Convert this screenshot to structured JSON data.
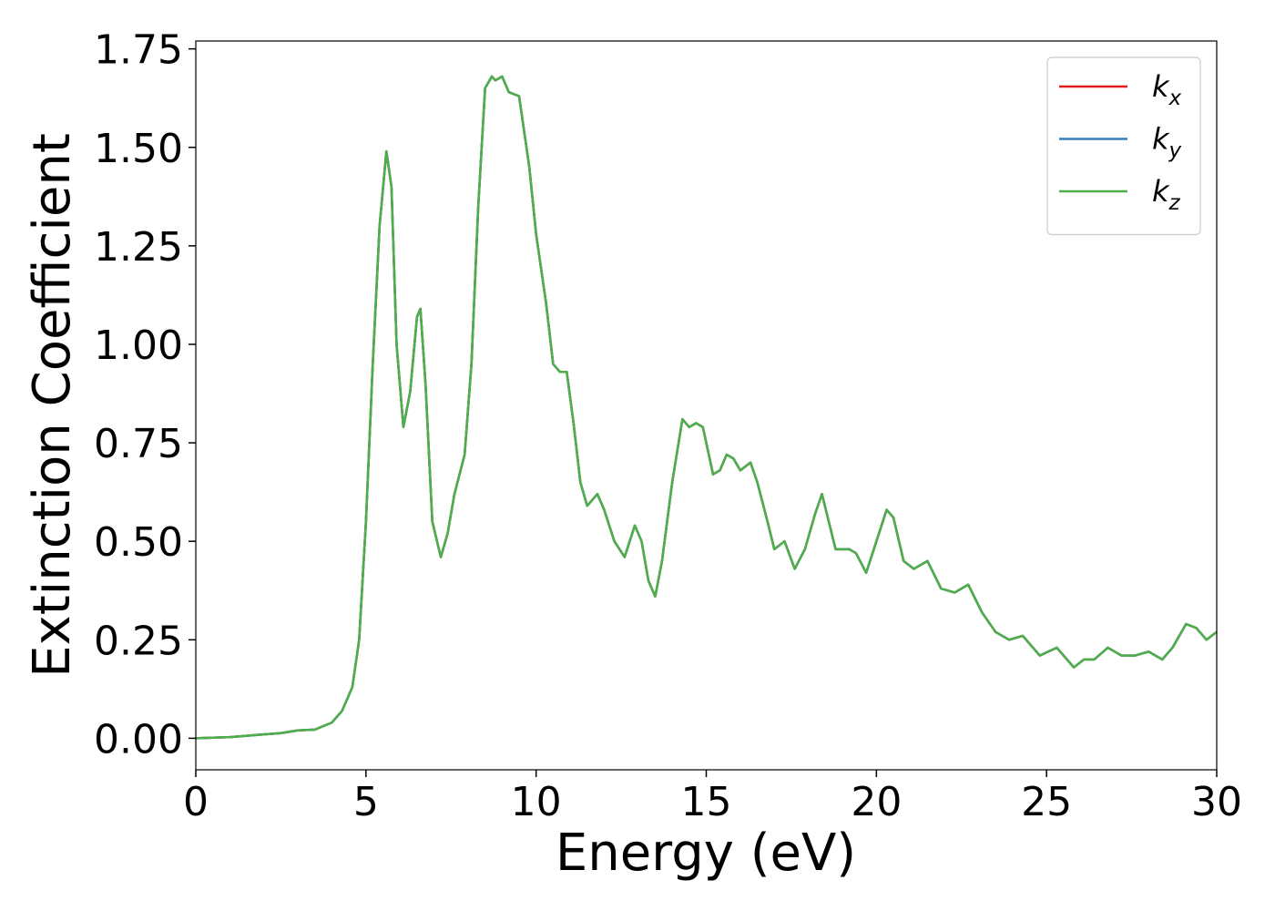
{
  "chart_data": {
    "type": "line",
    "xlabel": "Energy (eV)",
    "ylabel": "Extinction Coefficient",
    "xlim": [
      0,
      30
    ],
    "ylim": [
      -0.08,
      1.77
    ],
    "xticks": [
      0,
      5,
      10,
      15,
      20,
      25,
      30
    ],
    "yticks": [
      {
        "value": 0,
        "label": "0.00"
      },
      {
        "value": 0.25,
        "label": "0.25"
      },
      {
        "value": 0.5,
        "label": "0.50"
      },
      {
        "value": 0.75,
        "label": "0.75"
      },
      {
        "value": 1,
        "label": "1.00"
      },
      {
        "value": 1.25,
        "label": "1.25"
      },
      {
        "value": 1.5,
        "label": "1.50"
      },
      {
        "value": 1.75,
        "label": "1.75"
      }
    ],
    "grid": false,
    "legend": "upper right",
    "x": [
      0,
      1,
      2,
      2.5,
      3,
      3.5,
      4,
      4.3,
      4.6,
      4.8,
      5.0,
      5.2,
      5.4,
      5.6,
      5.75,
      5.9,
      6.1,
      6.3,
      6.5,
      6.6,
      6.75,
      6.95,
      7.2,
      7.4,
      7.6,
      7.9,
      8.1,
      8.3,
      8.5,
      8.7,
      8.8,
      9.0,
      9.2,
      9.5,
      9.8,
      10.0,
      10.3,
      10.5,
      10.7,
      10.9,
      11.1,
      11.3,
      11.5,
      11.8,
      12.0,
      12.3,
      12.6,
      12.9,
      13.1,
      13.3,
      13.5,
      13.7,
      14.0,
      14.3,
      14.5,
      14.7,
      14.9,
      15.2,
      15.4,
      15.6,
      15.8,
      16.0,
      16.3,
      16.5,
      16.8,
      17.0,
      17.3,
      17.6,
      17.9,
      18.2,
      18.4,
      18.6,
      18.8,
      19.2,
      19.4,
      19.7,
      20.0,
      20.3,
      20.5,
      20.8,
      21.1,
      21.5,
      21.9,
      22.3,
      22.7,
      23.1,
      23.5,
      23.9,
      24.3,
      24.8,
      25.3,
      25.5,
      25.8,
      26.1,
      26.4,
      26.8,
      27.2,
      27.6,
      28.0,
      28.4,
      28.7,
      29.1,
      29.4,
      29.7,
      30
    ],
    "series": [
      {
        "name": "kx",
        "color": "#e41a1c",
        "values": [
          0,
          0.003,
          0.01,
          0.013,
          0.02,
          0.022,
          0.04,
          0.07,
          0.13,
          0.25,
          0.55,
          0.95,
          1.3,
          1.49,
          1.4,
          1.0,
          0.79,
          0.88,
          1.07,
          1.09,
          0.9,
          0.55,
          0.46,
          0.52,
          0.62,
          0.72,
          0.95,
          1.35,
          1.65,
          1.68,
          1.67,
          1.68,
          1.64,
          1.63,
          1.45,
          1.28,
          1.1,
          0.95,
          0.93,
          0.93,
          0.8,
          0.65,
          0.59,
          0.62,
          0.58,
          0.5,
          0.46,
          0.54,
          0.5,
          0.4,
          0.36,
          0.45,
          0.65,
          0.81,
          0.79,
          0.8,
          0.79,
          0.67,
          0.68,
          0.72,
          0.71,
          0.68,
          0.7,
          0.65,
          0.55,
          0.48,
          0.5,
          0.43,
          0.48,
          0.57,
          0.62,
          0.55,
          0.48,
          0.48,
          0.47,
          0.42,
          0.5,
          0.58,
          0.56,
          0.45,
          0.43,
          0.45,
          0.38,
          0.37,
          0.39,
          0.32,
          0.27,
          0.25,
          0.26,
          0.21,
          0.23,
          0.21,
          0.18,
          0.2,
          0.2,
          0.23,
          0.21,
          0.21,
          0.22,
          0.2,
          0.23,
          0.29,
          0.28,
          0.25,
          0.27
        ]
      },
      {
        "name": "ky",
        "color": "#377eb8",
        "values": [
          0,
          0.003,
          0.01,
          0.013,
          0.02,
          0.022,
          0.04,
          0.07,
          0.13,
          0.25,
          0.55,
          0.95,
          1.3,
          1.49,
          1.4,
          1.0,
          0.79,
          0.88,
          1.07,
          1.09,
          0.9,
          0.55,
          0.46,
          0.52,
          0.62,
          0.72,
          0.95,
          1.35,
          1.65,
          1.68,
          1.67,
          1.68,
          1.64,
          1.63,
          1.45,
          1.28,
          1.1,
          0.95,
          0.93,
          0.93,
          0.8,
          0.65,
          0.59,
          0.62,
          0.58,
          0.5,
          0.46,
          0.54,
          0.5,
          0.4,
          0.36,
          0.45,
          0.65,
          0.81,
          0.79,
          0.8,
          0.79,
          0.67,
          0.68,
          0.72,
          0.71,
          0.68,
          0.7,
          0.65,
          0.55,
          0.48,
          0.5,
          0.43,
          0.48,
          0.57,
          0.62,
          0.55,
          0.48,
          0.48,
          0.47,
          0.42,
          0.5,
          0.58,
          0.56,
          0.45,
          0.43,
          0.45,
          0.38,
          0.37,
          0.39,
          0.32,
          0.27,
          0.25,
          0.26,
          0.21,
          0.23,
          0.21,
          0.18,
          0.2,
          0.2,
          0.23,
          0.21,
          0.21,
          0.22,
          0.2,
          0.23,
          0.29,
          0.28,
          0.25,
          0.27
        ]
      },
      {
        "name": "kz",
        "color": "#4daf4a",
        "values": [
          0,
          0.003,
          0.01,
          0.013,
          0.02,
          0.022,
          0.04,
          0.07,
          0.13,
          0.25,
          0.55,
          0.95,
          1.3,
          1.49,
          1.4,
          1.0,
          0.79,
          0.88,
          1.07,
          1.09,
          0.9,
          0.55,
          0.46,
          0.52,
          0.62,
          0.72,
          0.95,
          1.35,
          1.65,
          1.68,
          1.67,
          1.68,
          1.64,
          1.63,
          1.45,
          1.28,
          1.1,
          0.95,
          0.93,
          0.93,
          0.8,
          0.65,
          0.59,
          0.62,
          0.58,
          0.5,
          0.46,
          0.54,
          0.5,
          0.4,
          0.36,
          0.45,
          0.65,
          0.81,
          0.79,
          0.8,
          0.79,
          0.67,
          0.68,
          0.72,
          0.71,
          0.68,
          0.7,
          0.65,
          0.55,
          0.48,
          0.5,
          0.43,
          0.48,
          0.57,
          0.62,
          0.55,
          0.48,
          0.48,
          0.47,
          0.42,
          0.5,
          0.58,
          0.56,
          0.45,
          0.43,
          0.45,
          0.38,
          0.37,
          0.39,
          0.32,
          0.27,
          0.25,
          0.26,
          0.21,
          0.23,
          0.21,
          0.18,
          0.2,
          0.2,
          0.23,
          0.21,
          0.21,
          0.22,
          0.2,
          0.23,
          0.29,
          0.28,
          0.25,
          0.27
        ]
      }
    ]
  }
}
